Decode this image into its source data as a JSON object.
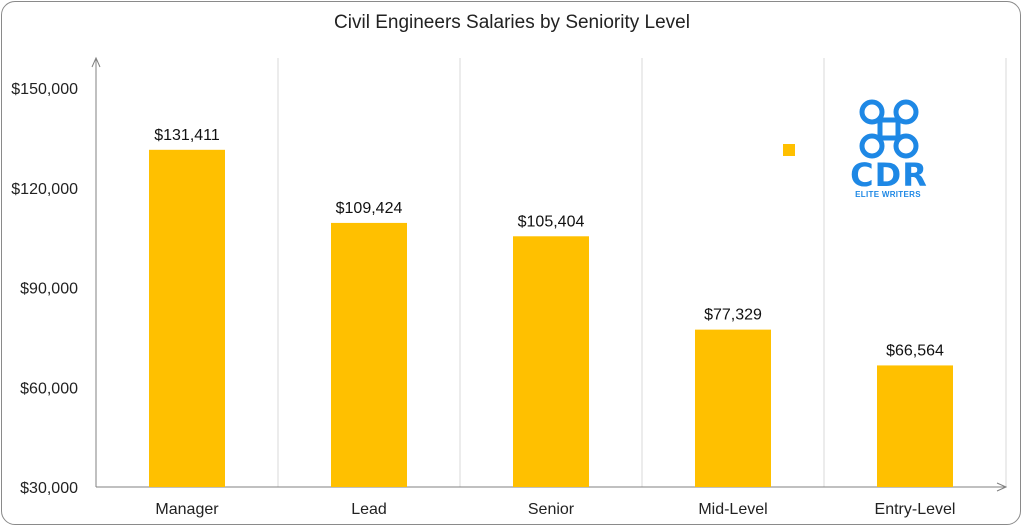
{
  "chart_data": {
    "type": "bar",
    "title": "Civil Engineers Salaries by Seniority Level",
    "categories": [
      "Manager",
      "Lead",
      "Senior",
      "Mid-Level",
      "Entry-Level"
    ],
    "values": [
      131411,
      109424,
      105404,
      77329,
      66564
    ],
    "data_labels": [
      "$131,411",
      "$109,424",
      "$105,404",
      "$77,329",
      "$66,564"
    ],
    "y_ticks": [
      30000,
      60000,
      90000,
      120000,
      150000
    ],
    "y_tick_labels": [
      "$30,000",
      "$60,000",
      "$90,000",
      "$120,000",
      "$150,000"
    ],
    "ylim": [
      30000,
      150000
    ],
    "xlabel": "",
    "ylabel": "",
    "grid": "vertical",
    "legend": "none",
    "bar_color": "#FFC000"
  },
  "logo": {
    "name": "cdr-elite-writers-logo",
    "text": "CDR",
    "subtext": "ELITE WRITERS",
    "color": "#1E88E5"
  }
}
